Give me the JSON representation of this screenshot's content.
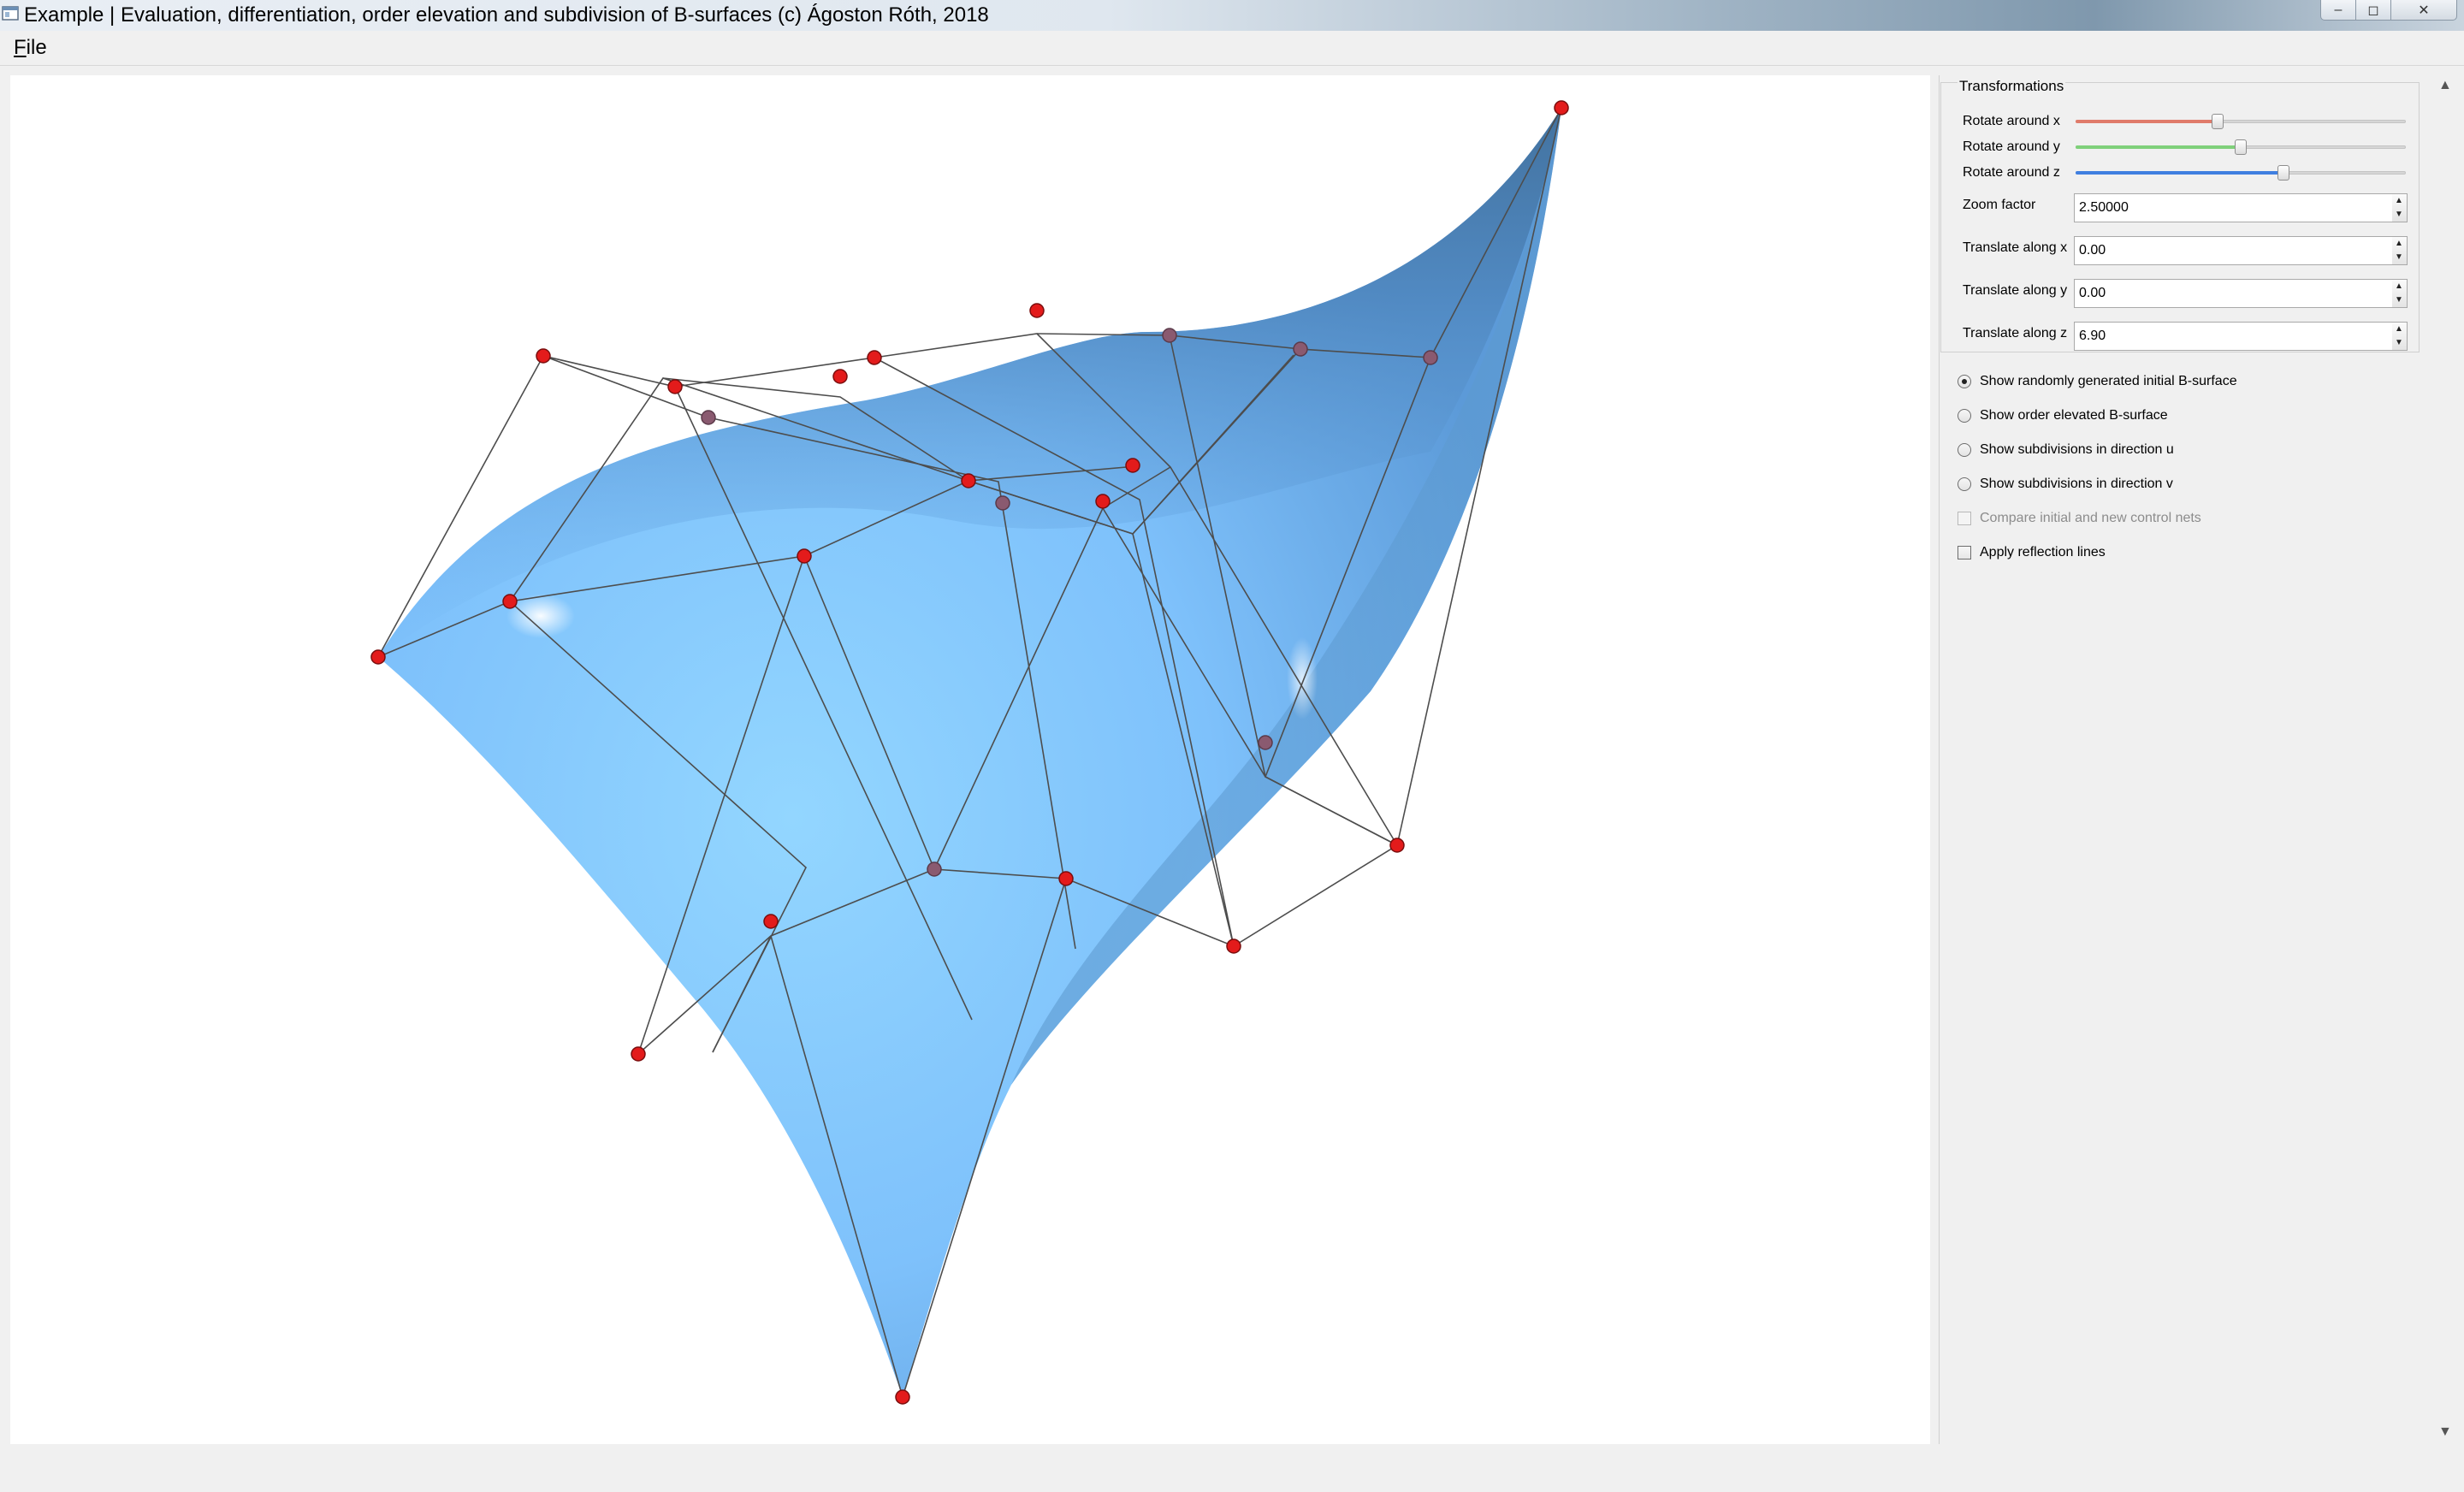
{
  "window": {
    "title": "Example | Evaluation, differentiation, order elevation and subdivision of B-surfaces (c) Ágoston Róth, 2018",
    "controls": {
      "minimize": "–",
      "maximize": "◻",
      "close": "✕"
    }
  },
  "menu": {
    "file_mnemonic": "F",
    "file_rest": "ile"
  },
  "transformations": {
    "title": "Transformations",
    "rotate_x": {
      "label": "Rotate around x",
      "value_fraction": 0.43,
      "color": "#e07b6a"
    },
    "rotate_y": {
      "label": "Rotate around y",
      "value_fraction": 0.5,
      "color": "#7fd07a"
    },
    "rotate_z": {
      "label": "Rotate around z",
      "value_fraction": 0.63,
      "color": "#3f7fe0"
    },
    "zoom": {
      "label": "Zoom factor",
      "value": "2.50000"
    },
    "translate_x": {
      "label": "Translate along x",
      "value": "0.00"
    },
    "translate_y": {
      "label": "Translate along y",
      "value": "0.00"
    },
    "translate_z": {
      "label": "Translate along z",
      "value": "6.90"
    }
  },
  "options": {
    "show_initial": {
      "label": "Show randomly generated initial B-surface",
      "checked": true
    },
    "show_elevated": {
      "label": "Show order elevated B-surface",
      "checked": false
    },
    "subdiv_u": {
      "label": "Show subdivisions in direction u",
      "checked": false
    },
    "subdiv_v": {
      "label": "Show subdivisions in direction v",
      "checked": false
    },
    "compare_nets": {
      "label": "Compare initial and new control nets",
      "checked": false,
      "enabled": false
    },
    "reflection_lines": {
      "label": "Apply reflection lines",
      "checked": false
    }
  },
  "colors": {
    "surface_light": "#8fd0ff",
    "surface_mid": "#6fb2ee",
    "surface_dark": "#3f6f9c",
    "control_point": "#e31b1b",
    "control_point_hidden": "#8a5a70",
    "control_net": "#4d4d4d"
  }
}
